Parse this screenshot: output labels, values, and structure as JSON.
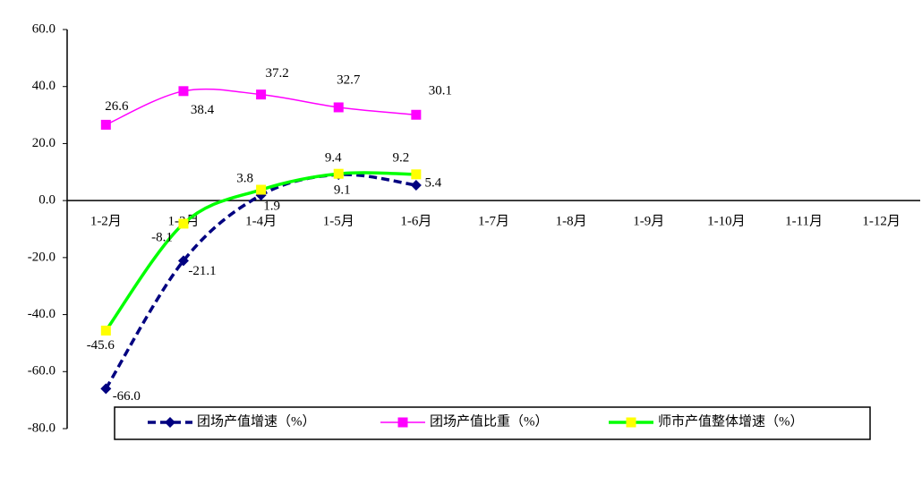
{
  "chart_data": {
    "type": "line",
    "categories": [
      "1-2月",
      "1-3月",
      "1-4月",
      "1-5月",
      "1-6月",
      "1-7月",
      "1-8月",
      "1-9月",
      "1-10月",
      "1-11月",
      "1-12月"
    ],
    "ylim": [
      -80,
      60
    ],
    "yticks": [
      {
        "value": 60,
        "label": "60.0"
      },
      {
        "value": 40,
        "label": "40.0"
      },
      {
        "value": 20,
        "label": "20.0"
      },
      {
        "value": 0,
        "label": "0.0"
      },
      {
        "value": -20,
        "label": "-20.0"
      },
      {
        "value": -40,
        "label": "-40.0"
      },
      {
        "value": -60,
        "label": "-60.0"
      },
      {
        "value": -80,
        "label": "-80.0"
      }
    ],
    "series": [
      {
        "name": "团场产值增速（%）",
        "color": "#000080",
        "marker_color": "#000080",
        "values": [
          -66,
          -21.1,
          1.9,
          9.1,
          5.4,
          null,
          null,
          null,
          null,
          null,
          null
        ],
        "value_labels": [
          "-66.0",
          "-21.1",
          "1.9",
          "9.1",
          "5.4",
          null,
          null,
          null,
          null,
          null,
          null
        ]
      },
      {
        "name": "团场产值比重（%）",
        "color": "#ff00ff",
        "marker_color": "#ff00ff",
        "values": [
          26.6,
          38.4,
          37.2,
          32.7,
          30.1,
          null,
          null,
          null,
          null,
          null,
          null
        ],
        "value_labels": [
          "26.6",
          "38.4",
          "37.2",
          "32.7",
          "30.1",
          null,
          null,
          null,
          null,
          null,
          null
        ]
      },
      {
        "name": "师市产值整体增速（%）",
        "color": "#00ff00",
        "marker_color": "#ffff00",
        "values": [
          -45.6,
          -8.1,
          3.8,
          9.4,
          9.2,
          null,
          null,
          null,
          null,
          null,
          null
        ],
        "value_labels": [
          "-45.6",
          "-8.1",
          "3.8",
          "9.4",
          "9.2",
          null,
          null,
          null,
          null,
          null,
          null
        ]
      }
    ]
  }
}
